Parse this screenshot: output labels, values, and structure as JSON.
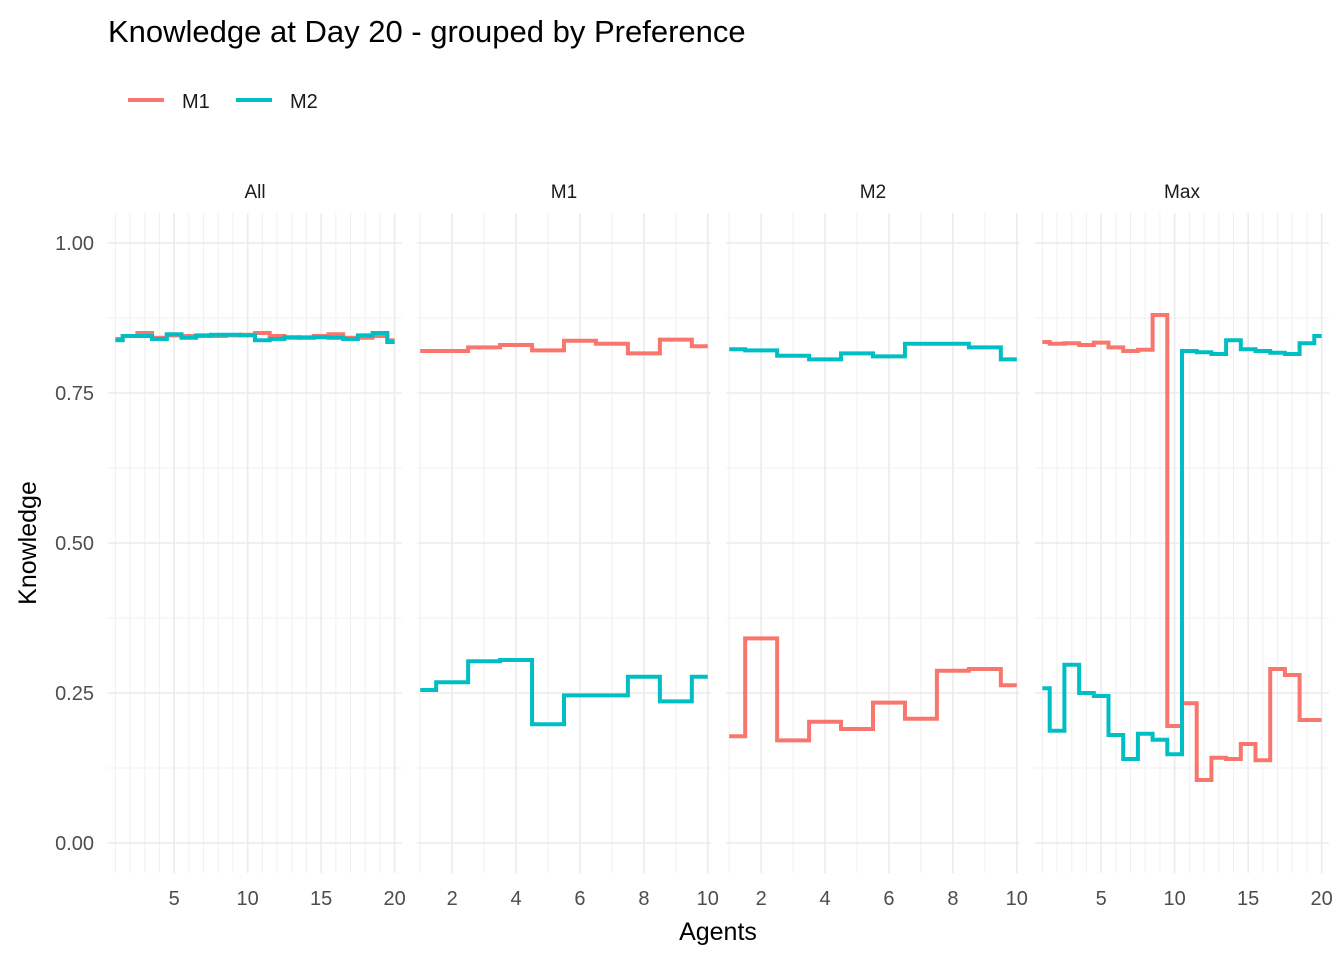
{
  "chart_data": {
    "type": "line",
    "step": true,
    "title": "Knowledge at Day 20 - grouped by Preference",
    "xlabel": "Agents",
    "ylabel": "Knowledge",
    "ylim": [
      -0.05,
      1.05
    ],
    "yticks": [
      0.0,
      0.25,
      0.5,
      0.75,
      1.0
    ],
    "ytick_labels": [
      "0.00",
      "0.25",
      "0.50",
      "0.75",
      "1.00"
    ],
    "grid": true,
    "legend": {
      "position": "top-left",
      "entries": [
        "M1",
        "M2"
      ]
    },
    "colors": {
      "M1": "#F8766D",
      "M2": "#00BFC4"
    },
    "panels": [
      {
        "label": "All",
        "xlim": [
          0.5,
          20.5
        ],
        "xticks": [
          5,
          10,
          15,
          20
        ],
        "series": [
          {
            "name": "M1",
            "x": [
              1,
              2,
              3,
              4,
              5,
              6,
              7,
              8,
              9,
              10,
              11,
              12,
              13,
              14,
              15,
              16,
              17,
              18,
              19,
              20
            ],
            "values": [
              0.84,
              0.845,
              0.85,
              0.842,
              0.846,
              0.845,
              0.845,
              0.845,
              0.846,
              0.847,
              0.85,
              0.845,
              0.842,
              0.843,
              0.845,
              0.848,
              0.842,
              0.842,
              0.845,
              0.838
            ]
          },
          {
            "name": "M2",
            "x": [
              1,
              2,
              3,
              4,
              5,
              6,
              7,
              8,
              9,
              10,
              11,
              12,
              13,
              14,
              15,
              16,
              17,
              18,
              19,
              20
            ],
            "values": [
              0.838,
              0.845,
              0.845,
              0.84,
              0.848,
              0.842,
              0.846,
              0.847,
              0.847,
              0.846,
              0.838,
              0.84,
              0.843,
              0.842,
              0.843,
              0.842,
              0.84,
              0.846,
              0.85,
              0.835
            ]
          }
        ]
      },
      {
        "label": "M1",
        "xlim": [
          0.9,
          10.1
        ],
        "xticks": [
          2,
          4,
          6,
          8,
          10
        ],
        "series": [
          {
            "name": "M1",
            "x": [
              1,
              2,
              3,
              4,
              5,
              6,
              7,
              8,
              9,
              10
            ],
            "values": [
              0.82,
              0.82,
              0.826,
              0.83,
              0.821,
              0.837,
              0.832,
              0.816,
              0.839,
              0.828
            ]
          },
          {
            "name": "M2",
            "x": [
              1,
              2,
              3,
              4,
              5,
              6,
              7,
              8,
              9,
              10
            ],
            "values": [
              0.255,
              0.268,
              0.303,
              0.305,
              0.198,
              0.246,
              0.246,
              0.277,
              0.236,
              0.277
            ]
          }
        ]
      },
      {
        "label": "M2",
        "xlim": [
          0.9,
          10.1
        ],
        "xticks": [
          2,
          4,
          6,
          8,
          10
        ],
        "series": [
          {
            "name": "M1",
            "x": [
              1,
              2,
              3,
              4,
              5,
              6,
              7,
              8,
              9,
              10
            ],
            "values": [
              0.178,
              0.341,
              0.171,
              0.202,
              0.19,
              0.234,
              0.207,
              0.287,
              0.29,
              0.263
            ]
          },
          {
            "name": "M2",
            "x": [
              1,
              2,
              3,
              4,
              5,
              6,
              7,
              8,
              9,
              10
            ],
            "values": [
              0.823,
              0.821,
              0.812,
              0.806,
              0.816,
              0.811,
              0.832,
              0.832,
              0.826,
              0.806
            ]
          }
        ]
      },
      {
        "label": "Max",
        "xlim": [
          0.5,
          20.5
        ],
        "xticks": [
          5,
          10,
          15,
          20
        ],
        "series": [
          {
            "name": "M1",
            "x": [
              1,
              2,
              3,
              4,
              5,
              6,
              7,
              8,
              9,
              10,
              11,
              12,
              13,
              14,
              15,
              16,
              17,
              18,
              19,
              20
            ],
            "values": [
              0.835,
              0.832,
              0.833,
              0.83,
              0.834,
              0.826,
              0.82,
              0.822,
              0.88,
              0.195,
              0.233,
              0.105,
              0.142,
              0.14,
              0.165,
              0.138,
              0.29,
              0.28,
              0.205,
              0.205
            ]
          },
          {
            "name": "M2",
            "x": [
              1,
              2,
              3,
              4,
              5,
              6,
              7,
              8,
              9,
              10,
              11,
              12,
              13,
              14,
              15,
              16,
              17,
              18,
              19,
              20
            ],
            "values": [
              0.258,
              0.187,
              0.297,
              0.25,
              0.245,
              0.18,
              0.14,
              0.182,
              0.172,
              0.148,
              0.82,
              0.818,
              0.815,
              0.838,
              0.823,
              0.82,
              0.817,
              0.815,
              0.833,
              0.845
            ]
          }
        ]
      }
    ]
  }
}
